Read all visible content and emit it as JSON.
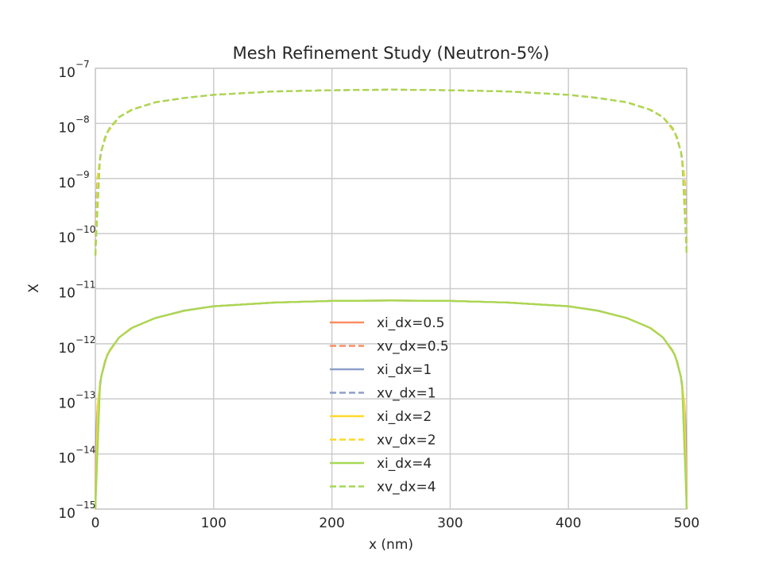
{
  "chart_data": {
    "type": "line",
    "title": "Mesh Refinement Study (Neutron-5%)",
    "xlabel": "x (nm)",
    "ylabel": "X",
    "xlim": [
      0,
      500
    ],
    "ylim": [
      1e-15,
      1e-07
    ],
    "yscale": "log",
    "grid": true,
    "legend_position": "lower center",
    "xticks": [
      {
        "value": 0,
        "label": "0"
      },
      {
        "value": 100,
        "label": "100"
      },
      {
        "value": 200,
        "label": "200"
      },
      {
        "value": 300,
        "label": "300"
      },
      {
        "value": 400,
        "label": "400"
      },
      {
        "value": 500,
        "label": "500"
      }
    ],
    "yticks": [
      {
        "value": 1e-15,
        "base": "10",
        "exp": "−15"
      },
      {
        "value": 1e-14,
        "base": "10",
        "exp": "−14"
      },
      {
        "value": 1e-13,
        "base": "10",
        "exp": "−13"
      },
      {
        "value": 1e-12,
        "base": "10",
        "exp": "−12"
      },
      {
        "value": 1e-11,
        "base": "10",
        "exp": "−11"
      },
      {
        "value": 1e-10,
        "base": "10",
        "exp": "−10"
      },
      {
        "value": 1e-09,
        "base": "10",
        "exp": "−9"
      },
      {
        "value": 1e-08,
        "base": "10",
        "exp": "−8"
      },
      {
        "value": 1e-07,
        "base": "10",
        "exp": "−7"
      }
    ],
    "series": [
      {
        "name": "xi_dx=0.5",
        "color": "#fc8d62",
        "dash": "solid",
        "x": [
          0,
          0.5,
          1,
          2,
          5,
          10,
          20,
          30,
          50,
          75,
          100,
          150,
          200,
          250,
          300,
          350,
          400,
          425,
          450,
          470,
          480,
          490,
          495,
          498,
          499,
          499.5,
          500
        ],
        "y": [
          1e-15,
          1.5e-14,
          3.4e-14,
          8e-14,
          2.6e-13,
          6.3e-13,
          1.3e-12,
          1.9e-12,
          2.9e-12,
          4e-12,
          4.8e-12,
          5.6e-12,
          6e-12,
          6.1e-12,
          6e-12,
          5.6e-12,
          4.8e-12,
          4e-12,
          2.9e-12,
          1.9e-12,
          1.3e-12,
          6.3e-13,
          2.6e-13,
          8e-14,
          3.4e-14,
          1.5e-14,
          1e-15
        ]
      },
      {
        "name": "xv_dx=0.5",
        "color": "#fc8d62",
        "dash": "dashed",
        "x": [
          0,
          0.5,
          1,
          2,
          5,
          10,
          20,
          30,
          50,
          75,
          100,
          150,
          200,
          250,
          300,
          350,
          400,
          425,
          450,
          470,
          480,
          490,
          495,
          498,
          499,
          499.5,
          500
        ],
        "y": [
          4e-11,
          2e-10,
          5e-10,
          1.1e-09,
          3.2e-09,
          6.8e-09,
          1.3e-08,
          1.75e-08,
          2.4e-08,
          2.9e-08,
          3.3e-08,
          3.8e-08,
          4e-08,
          4.1e-08,
          4e-08,
          3.8e-08,
          3.3e-08,
          2.9e-08,
          2.4e-08,
          1.75e-08,
          1.3e-08,
          6.8e-09,
          3.2e-09,
          1.1e-09,
          5e-10,
          2e-10,
          4e-11
        ]
      },
      {
        "name": "xi_dx=1",
        "color": "#8da0cb",
        "dash": "solid",
        "x": [
          0,
          1,
          2,
          5,
          10,
          20,
          30,
          50,
          75,
          100,
          150,
          200,
          250,
          300,
          350,
          400,
          425,
          450,
          470,
          480,
          490,
          495,
          498,
          499,
          500
        ],
        "y": [
          1e-15,
          3.4e-14,
          8e-14,
          2.6e-13,
          6.3e-13,
          1.3e-12,
          1.9e-12,
          2.9e-12,
          4e-12,
          4.8e-12,
          5.6e-12,
          6e-12,
          6.1e-12,
          6e-12,
          5.6e-12,
          4.8e-12,
          4e-12,
          2.9e-12,
          1.9e-12,
          1.3e-12,
          6.3e-13,
          2.6e-13,
          8e-14,
          3.4e-14,
          1e-15
        ]
      },
      {
        "name": "xv_dx=1",
        "color": "#8da0cb",
        "dash": "dashed",
        "x": [
          0,
          1,
          2,
          5,
          10,
          20,
          30,
          50,
          75,
          100,
          150,
          200,
          250,
          300,
          350,
          400,
          425,
          450,
          470,
          480,
          490,
          495,
          498,
          499,
          500
        ],
        "y": [
          4e-11,
          5e-10,
          1.1e-09,
          3.2e-09,
          6.8e-09,
          1.3e-08,
          1.75e-08,
          2.4e-08,
          2.9e-08,
          3.3e-08,
          3.8e-08,
          4e-08,
          4.1e-08,
          4e-08,
          3.8e-08,
          3.3e-08,
          2.9e-08,
          2.4e-08,
          1.75e-08,
          1.3e-08,
          6.8e-09,
          3.2e-09,
          1.1e-09,
          5e-10,
          4e-11
        ]
      },
      {
        "name": "xi_dx=2",
        "color": "#ffd92f",
        "dash": "solid",
        "x": [
          0,
          2,
          4,
          6,
          10,
          20,
          30,
          50,
          76,
          100,
          150,
          200,
          250,
          300,
          350,
          400,
          424,
          450,
          470,
          480,
          490,
          494,
          496,
          498,
          500
        ],
        "y": [
          1e-15,
          8e-14,
          2e-13,
          3.2e-13,
          6.3e-13,
          1.3e-12,
          1.9e-12,
          2.9e-12,
          4e-12,
          4.8e-12,
          5.6e-12,
          6e-12,
          6.1e-12,
          6e-12,
          5.6e-12,
          4.8e-12,
          4e-12,
          2.9e-12,
          1.9e-12,
          1.3e-12,
          6.3e-13,
          3.2e-13,
          2e-13,
          8e-14,
          1e-15
        ]
      },
      {
        "name": "xv_dx=2",
        "color": "#ffd92f",
        "dash": "dashed",
        "x": [
          0,
          2,
          4,
          6,
          10,
          20,
          30,
          50,
          76,
          100,
          150,
          200,
          250,
          300,
          350,
          400,
          424,
          450,
          470,
          480,
          490,
          494,
          496,
          498,
          500
        ],
        "y": [
          4e-11,
          1.1e-09,
          2.5e-09,
          3.8e-09,
          6.8e-09,
          1.3e-08,
          1.75e-08,
          2.4e-08,
          2.9e-08,
          3.3e-08,
          3.8e-08,
          4e-08,
          4.1e-08,
          4e-08,
          3.8e-08,
          3.3e-08,
          2.9e-08,
          2.4e-08,
          1.75e-08,
          1.3e-08,
          6.8e-09,
          3.8e-09,
          2.5e-09,
          1.1e-09,
          4e-11
        ]
      },
      {
        "name": "xi_dx=4",
        "color": "#a6d854",
        "dash": "solid",
        "x": [
          0,
          4,
          8,
          12,
          20,
          32,
          52,
          76,
          100,
          152,
          200,
          252,
          300,
          348,
          400,
          424,
          448,
          468,
          480,
          488,
          492,
          496,
          500
        ],
        "y": [
          1e-15,
          2e-13,
          4.8e-13,
          7.6e-13,
          1.3e-12,
          2e-12,
          3e-12,
          4e-12,
          4.8e-12,
          5.6e-12,
          6e-12,
          6.1e-12,
          6e-12,
          5.6e-12,
          4.8e-12,
          4e-12,
          3e-12,
          2e-12,
          1.3e-12,
          7.6e-13,
          4.8e-13,
          2e-13,
          1e-15
        ]
      },
      {
        "name": "xv_dx=4",
        "color": "#a6d854",
        "dash": "dashed",
        "x": [
          0,
          4,
          8,
          12,
          20,
          32,
          52,
          76,
          100,
          152,
          200,
          252,
          300,
          348,
          400,
          424,
          448,
          468,
          480,
          488,
          492,
          496,
          500
        ],
        "y": [
          4e-11,
          2.5e-09,
          5.5e-09,
          8.3e-09,
          1.3e-08,
          1.8e-08,
          2.45e-08,
          2.9e-08,
          3.3e-08,
          3.8e-08,
          4e-08,
          4.1e-08,
          4e-08,
          3.8e-08,
          3.3e-08,
          2.9e-08,
          2.45e-08,
          1.8e-08,
          1.3e-08,
          8.3e-09,
          5.5e-09,
          2.5e-09,
          4e-11
        ]
      }
    ]
  }
}
